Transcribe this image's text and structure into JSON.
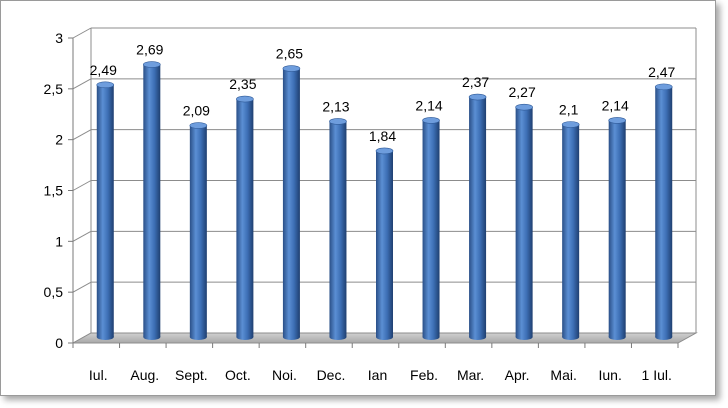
{
  "chart_data": {
    "type": "bar",
    "categories": [
      "Iul.",
      "Aug.",
      "Sept.",
      "Oct.",
      "Noi.",
      "Dec.",
      "Ian",
      "Feb.",
      "Mar.",
      "Apr.",
      "Mai.",
      "Iun.",
      "1 Iul."
    ],
    "values": [
      2.49,
      2.69,
      2.09,
      2.35,
      2.65,
      2.13,
      1.84,
      2.14,
      2.37,
      2.27,
      2.1,
      2.14,
      2.47
    ],
    "value_labels": [
      "2,49",
      "2,69",
      "2,09",
      "2,35",
      "2,65",
      "2,13",
      "1,84",
      "2,14",
      "2,37",
      "2,27",
      "2,1",
      "2,14",
      "2,47"
    ],
    "y_ticks": [
      "0",
      "0,5",
      "1",
      "1,5",
      "2",
      "2,5",
      "3"
    ],
    "ylim": [
      0,
      3
    ],
    "grid": true,
    "title": "",
    "xlabel": "",
    "ylabel": "",
    "style": "3d-cylinder",
    "bar_color": "#3d6fb5"
  }
}
